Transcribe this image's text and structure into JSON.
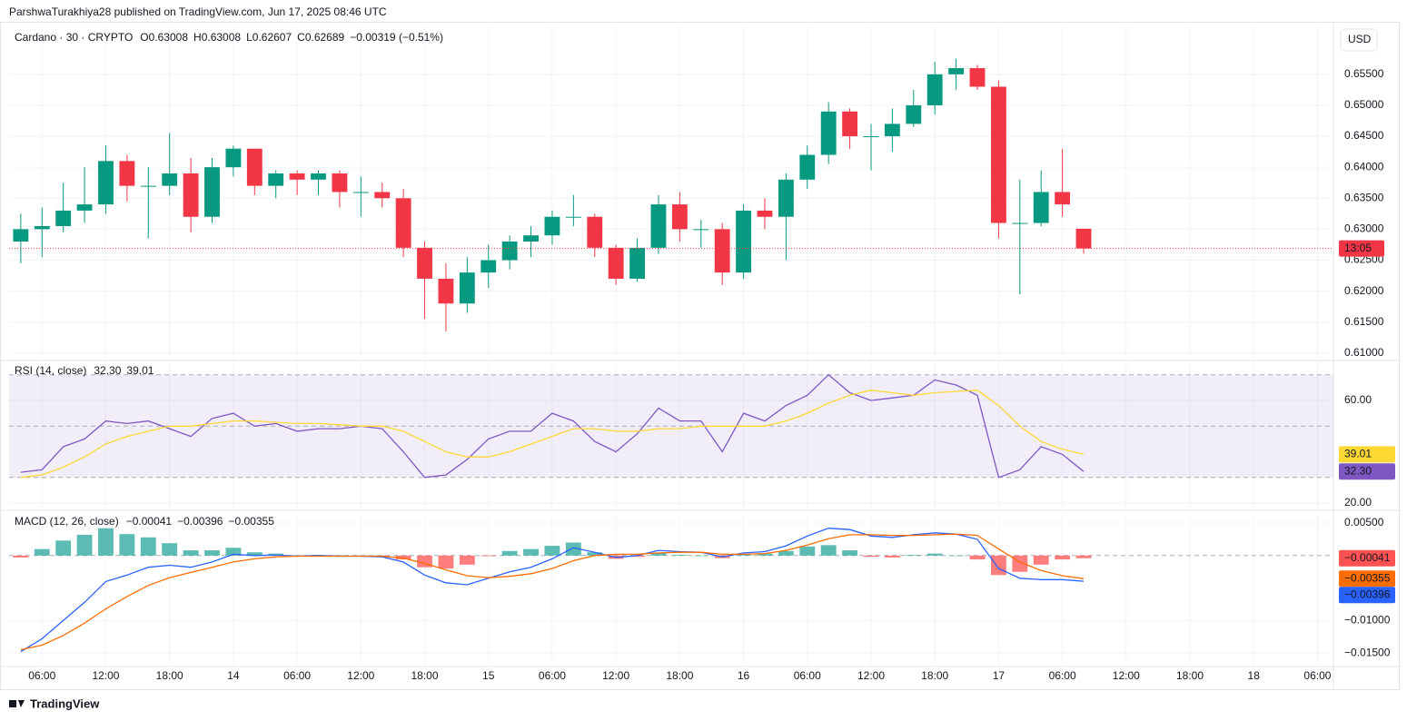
{
  "header": {
    "byline": "ParshwaTurakhiya28 published on TradingView.com, Jun 17, 2025 08:46 UTC"
  },
  "footer": {
    "brand": "TradingView"
  },
  "currency": "USD",
  "chart_data": [
    {
      "type": "candlestick",
      "title": "Cardano · 30 · CRYPTO",
      "legend": [
        {
          "key": "O",
          "value": "0.63008"
        },
        {
          "key": "H",
          "value": "0.63008"
        },
        {
          "key": "L",
          "value": "0.62607"
        },
        {
          "key": "C",
          "value": "0.62689"
        }
      ],
      "change": "−0.00319 (−0.51%)",
      "up_color": "#089981",
      "down_color": "#f23645",
      "x": [
        4,
        6,
        8,
        10,
        12,
        14,
        16,
        18,
        20,
        22,
        24,
        26,
        28,
        30,
        32,
        34,
        36,
        38,
        40,
        42,
        44,
        46,
        48,
        50,
        52,
        54,
        56,
        58,
        60,
        62,
        64,
        66,
        68,
        70,
        72,
        74,
        76,
        78,
        80,
        82,
        84,
        86,
        88,
        90,
        92,
        94,
        96,
        98,
        100,
        102,
        104
      ],
      "ohlc": [
        [
          0.628,
          0.6325,
          0.6245,
          0.63
        ],
        [
          0.63,
          0.6335,
          0.6255,
          0.6305
        ],
        [
          0.6305,
          0.6375,
          0.6295,
          0.633
        ],
        [
          0.633,
          0.64,
          0.631,
          0.634
        ],
        [
          0.634,
          0.6435,
          0.6325,
          0.641
        ],
        [
          0.641,
          0.642,
          0.6345,
          0.637
        ],
        [
          0.637,
          0.64,
          0.6285,
          0.637
        ],
        [
          0.637,
          0.6455,
          0.6355,
          0.639
        ],
        [
          0.639,
          0.6415,
          0.6295,
          0.632
        ],
        [
          0.632,
          0.6415,
          0.631,
          0.64
        ],
        [
          0.64,
          0.6435,
          0.6385,
          0.643
        ],
        [
          0.643,
          0.643,
          0.6355,
          0.637
        ],
        [
          0.637,
          0.6395,
          0.635,
          0.639
        ],
        [
          0.639,
          0.6395,
          0.6355,
          0.638
        ],
        [
          0.638,
          0.6395,
          0.6355,
          0.639
        ],
        [
          0.639,
          0.6395,
          0.6335,
          0.636
        ],
        [
          0.636,
          0.6385,
          0.632,
          0.636
        ],
        [
          0.636,
          0.6375,
          0.6335,
          0.635
        ],
        [
          0.635,
          0.6365,
          0.6255,
          0.627
        ],
        [
          0.627,
          0.628,
          0.6155,
          0.622
        ],
        [
          0.622,
          0.6245,
          0.6135,
          0.618
        ],
        [
          0.618,
          0.6255,
          0.6165,
          0.623
        ],
        [
          0.623,
          0.6275,
          0.6205,
          0.625
        ],
        [
          0.625,
          0.629,
          0.6235,
          0.628
        ],
        [
          0.628,
          0.6305,
          0.6255,
          0.629
        ],
        [
          0.629,
          0.633,
          0.6275,
          0.632
        ],
        [
          0.632,
          0.6355,
          0.6305,
          0.632
        ],
        [
          0.632,
          0.6325,
          0.6255,
          0.627
        ],
        [
          0.627,
          0.6275,
          0.621,
          0.622
        ],
        [
          0.622,
          0.6285,
          0.6215,
          0.627
        ],
        [
          0.627,
          0.6355,
          0.626,
          0.634
        ],
        [
          0.634,
          0.636,
          0.628,
          0.63
        ],
        [
          0.63,
          0.6315,
          0.627,
          0.63
        ],
        [
          0.63,
          0.631,
          0.621,
          0.623
        ],
        [
          0.623,
          0.634,
          0.622,
          0.633
        ],
        [
          0.633,
          0.635,
          0.63,
          0.632
        ],
        [
          0.632,
          0.639,
          0.625,
          0.638
        ],
        [
          0.638,
          0.6435,
          0.6365,
          0.642
        ],
        [
          0.642,
          0.6505,
          0.6405,
          0.649
        ],
        [
          0.649,
          0.6495,
          0.643,
          0.645
        ],
        [
          0.645,
          0.647,
          0.6395,
          0.645
        ],
        [
          0.645,
          0.6495,
          0.6425,
          0.647
        ],
        [
          0.647,
          0.6525,
          0.6465,
          0.65
        ],
        [
          0.65,
          0.657,
          0.6485,
          0.655
        ],
        [
          0.655,
          0.6575,
          0.6525,
          0.656
        ],
        [
          0.656,
          0.6565,
          0.6525,
          0.653
        ],
        [
          0.653,
          0.654,
          0.6285,
          0.631
        ],
        [
          0.631,
          0.638,
          0.6195,
          0.631
        ],
        [
          0.631,
          0.6395,
          0.6305,
          0.636
        ],
        [
          0.636,
          0.643,
          0.632,
          0.634
        ],
        [
          0.63008,
          0.63008,
          0.62607,
          0.62689
        ]
      ],
      "last": 0.62689,
      "countdown": "13:05",
      "xlim": [
        2.9,
        127.5
      ],
      "xticks": [
        {
          "value": 6,
          "label": "06:00"
        },
        {
          "value": 12,
          "label": "12:00"
        },
        {
          "value": 18,
          "label": "18:00"
        },
        {
          "value": 24,
          "label": "14"
        },
        {
          "value": 30,
          "label": "06:00"
        },
        {
          "value": 36,
          "label": "12:00"
        },
        {
          "value": 42,
          "label": "18:00"
        },
        {
          "value": 48,
          "label": "15"
        },
        {
          "value": 54,
          "label": "06:00"
        },
        {
          "value": 60,
          "label": "12:00"
        },
        {
          "value": 66,
          "label": "18:00"
        },
        {
          "value": 72,
          "label": "16"
        },
        {
          "value": 78,
          "label": "06:00"
        },
        {
          "value": 84,
          "label": "12:00"
        },
        {
          "value": 90,
          "label": "18:00"
        },
        {
          "value": 96,
          "label": "17"
        },
        {
          "value": 102,
          "label": "06:00"
        },
        {
          "value": 108,
          "label": "12:00"
        },
        {
          "value": 114,
          "label": "18:00"
        },
        {
          "value": 120,
          "label": "18"
        },
        {
          "value": 126,
          "label": "06:00"
        }
      ],
      "ylim": [
        0.6088,
        0.6626
      ],
      "yticks": [
        {
          "value": 0.655,
          "label": "0.65500"
        },
        {
          "value": 0.65,
          "label": "0.65000"
        },
        {
          "value": 0.645,
          "label": "0.64500"
        },
        {
          "value": 0.64,
          "label": "0.64000"
        },
        {
          "value": 0.635,
          "label": "0.63500"
        },
        {
          "value": 0.63,
          "label": "0.63000"
        },
        {
          "value": 0.625,
          "label": "0.62500"
        },
        {
          "value": 0.62,
          "label": "0.62000"
        },
        {
          "value": 0.615,
          "label": "0.61500"
        },
        {
          "value": 0.61,
          "label": "0.61000"
        }
      ],
      "grid": true
    },
    {
      "type": "line",
      "title": "RSI (14, close)",
      "ylim": [
        17.9,
        74.5
      ],
      "yticks": [
        {
          "value": 60,
          "label": "60.00"
        },
        {
          "value": 20,
          "label": "20.00"
        }
      ],
      "levels": [
        70,
        50,
        30
      ],
      "band_color": "#7e57c2",
      "series": [
        {
          "color": "#7e57c2",
          "value_label": "32.30",
          "values": [
            32,
            33,
            42,
            45,
            52,
            51,
            52,
            49,
            46,
            53,
            55,
            50,
            51,
            48,
            49,
            49,
            50,
            49,
            40,
            30,
            31,
            37,
            45,
            48,
            48,
            55,
            52,
            44,
            40,
            47,
            57,
            52,
            52,
            40,
            55,
            52,
            58,
            62,
            70,
            63,
            60,
            61,
            62,
            68,
            66,
            62,
            30,
            33,
            42,
            39,
            32.3
          ]
        },
        {
          "color": "#fdd835",
          "value_label": "39.01",
          "values": [
            30,
            31,
            34,
            38,
            43,
            46,
            48,
            50,
            50,
            51,
            52,
            52,
            51.5,
            51,
            51,
            50.5,
            50,
            50,
            48,
            44,
            40,
            38,
            38,
            40,
            43,
            46,
            49,
            49,
            48,
            48,
            49,
            49,
            50,
            50,
            50,
            50,
            52,
            55,
            59,
            62,
            64,
            63,
            62,
            63,
            63.5,
            64,
            58,
            50,
            44,
            41,
            39.01
          ]
        }
      ]
    },
    {
      "type": "line",
      "title": "MACD (12, 26, close)",
      "ylim": [
        -0.0168,
        0.0064
      ],
      "yticks": [
        {
          "value": 0.005,
          "label": "0.00500"
        },
        {
          "value": -0.01,
          "label": "−0.01000"
        },
        {
          "value": -0.015,
          "label": "−0.01500"
        }
      ],
      "levels": [
        0
      ],
      "histogram": {
        "value_label": "−0.00041",
        "color_positive": "#26a69a",
        "color_negative": "#ff5252",
        "values": [
          -0.0003,
          0.001,
          0.0023,
          0.0032,
          0.0042,
          0.0033,
          0.0028,
          0.0019,
          0.0008,
          0.0008,
          0.0012,
          0.0005,
          0.0003,
          0,
          0.0001,
          0,
          0,
          -0.0001,
          -0.0006,
          -0.0018,
          -0.002,
          -0.0014,
          -0.0001,
          0.0007,
          0.001,
          0.0015,
          0.002,
          0.0005,
          -0.0005,
          -0.0002,
          0.0004,
          0.0001,
          0,
          -0.0004,
          0.0002,
          0.0003,
          0.0007,
          0.0014,
          0.0016,
          0.0008,
          -0.0002,
          -0.0003,
          0.0001,
          0.0003,
          0,
          -0.0006,
          -0.003,
          -0.0025,
          -0.0014,
          -0.0006,
          -0.00041
        ]
      },
      "series": [
        {
          "color": "#2962ff",
          "value_label": "−0.00396",
          "values": [
            -0.0148,
            -0.0128,
            -0.01,
            -0.0072,
            -0.004,
            -0.003,
            -0.0018,
            -0.0015,
            -0.0018,
            -0.001,
            0.0002,
            0,
            0.0001,
            -0.0001,
            0,
            -0.0001,
            -0.0001,
            -0.0002,
            -0.001,
            -0.003,
            -0.0042,
            -0.0045,
            -0.0035,
            -0.0025,
            -0.0018,
            -0.0005,
            0.0012,
            0.0005,
            -0.0003,
            0,
            0.0008,
            0.0006,
            0.0005,
            -0.0002,
            0.0004,
            0.0006,
            0.0015,
            0.003,
            0.0042,
            0.004,
            0.003,
            0.0028,
            0.0032,
            0.0035,
            0.0033,
            0.0025,
            -0.002,
            -0.0035,
            -0.0037,
            -0.0037,
            -0.00396
          ]
        },
        {
          "color": "#ff6d00",
          "value_label": "−0.00355",
          "values": [
            -0.0145,
            -0.0138,
            -0.0123,
            -0.0104,
            -0.0082,
            -0.0063,
            -0.0046,
            -0.0034,
            -0.0026,
            -0.0018,
            -0.001,
            -0.0005,
            -0.0002,
            -0.0001,
            -0.0001,
            -0.0001,
            -0.0001,
            -0.0001,
            -0.0004,
            -0.0012,
            -0.0022,
            -0.0031,
            -0.0034,
            -0.0032,
            -0.0028,
            -0.002,
            -0.0008,
            0,
            0.0002,
            0.0002,
            0.0004,
            0.0005,
            0.0005,
            0.0002,
            0.0002,
            0.0003,
            0.0008,
            0.0016,
            0.0026,
            0.0032,
            0.0032,
            0.0031,
            0.0031,
            0.0032,
            0.0033,
            0.0031,
            0.001,
            -0.001,
            -0.0023,
            -0.0031,
            -0.00355
          ]
        }
      ]
    }
  ]
}
